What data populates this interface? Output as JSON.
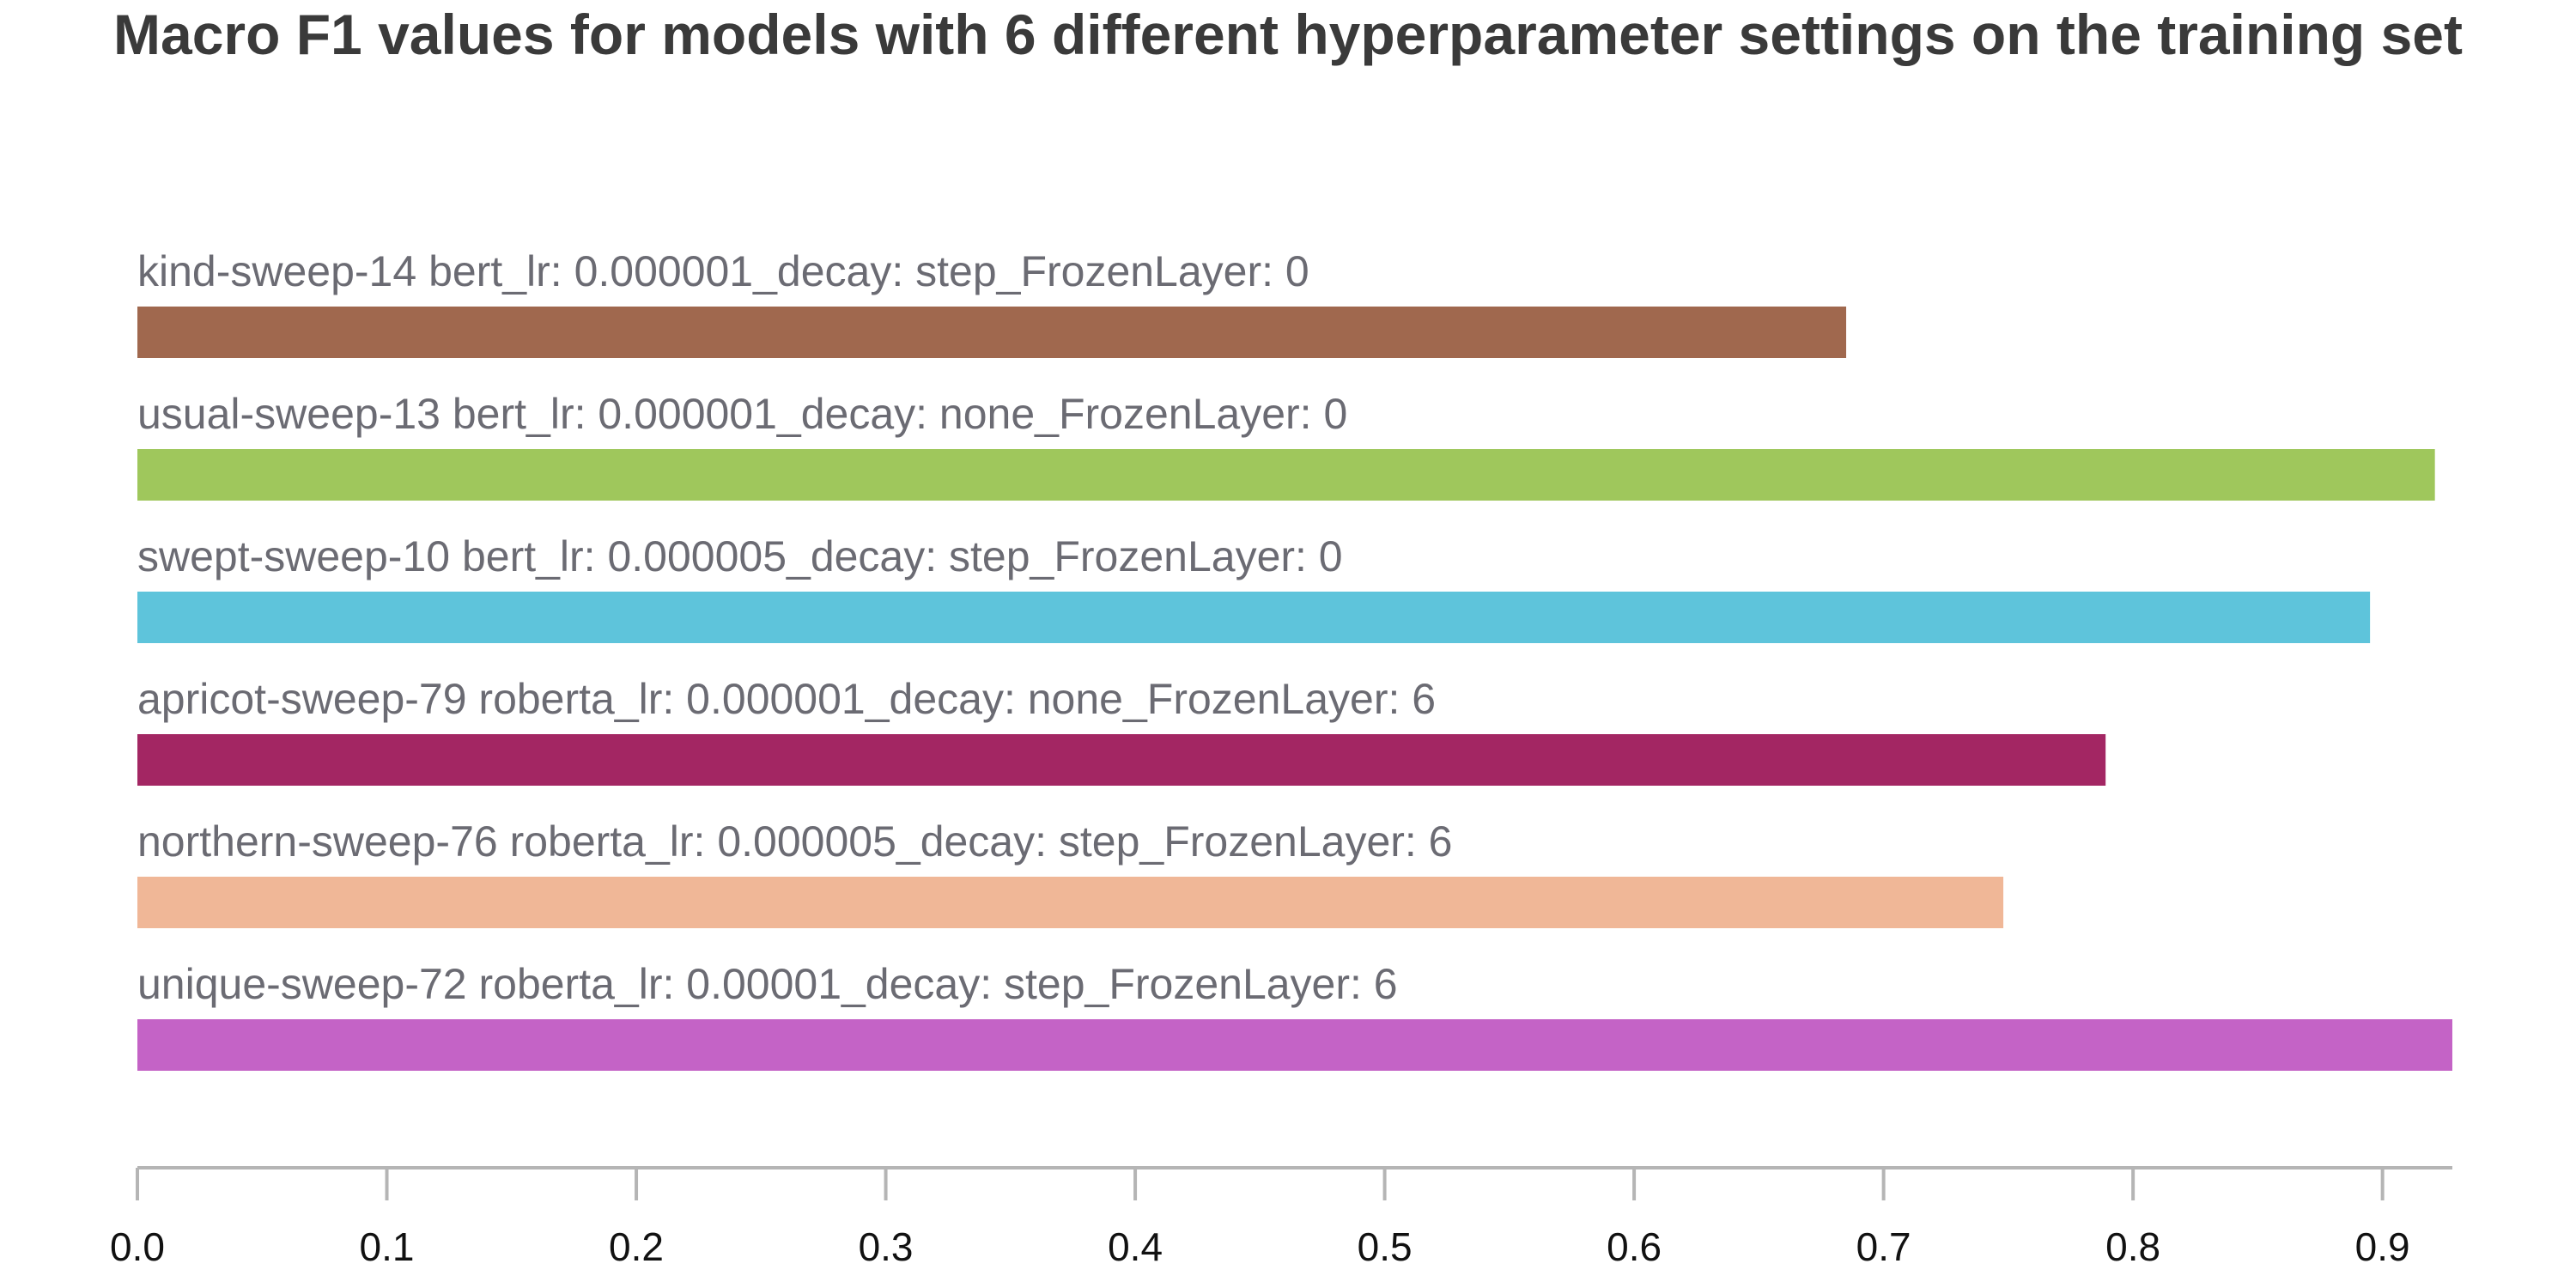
{
  "chart_data": {
    "type": "bar",
    "orientation": "horizontal",
    "title": "Macro F1 values for models with 6 different hyperparameter settings on the training set",
    "xlabel": "",
    "ylabel": "",
    "xlim": [
      0,
      0.928
    ],
    "grid": false,
    "legend": "none",
    "bars": [
      {
        "label": "kind-sweep-14 bert_lr: 0.000001_decay: step_FrozenLayer: 0",
        "value": 0.685,
        "color": "#a0684e"
      },
      {
        "label": "usual-sweep-13 bert_lr: 0.000001_decay: none_FrozenLayer: 0",
        "value": 0.921,
        "color": "#9fc75c"
      },
      {
        "label": "swept-sweep-10 bert_lr: 0.000005_decay: step_FrozenLayer: 0",
        "value": 0.895,
        "color": "#5ec4db"
      },
      {
        "label": "apricot-sweep-79 roberta_lr: 0.000001_decay: none_FrozenLayer: 6",
        "value": 0.789,
        "color": "#a32663"
      },
      {
        "label": "northern-sweep-76 roberta_lr: 0.000005_decay: step_FrozenLayer: 6",
        "value": 0.748,
        "color": "#f0b797"
      },
      {
        "label": "unique-sweep-72 roberta_lr: 0.00001_decay: step_FrozenLayer: 6",
        "value": 0.928,
        "color": "#c463c6"
      }
    ],
    "ticks": [
      0.0,
      0.1,
      0.2,
      0.3,
      0.4,
      0.5,
      0.6,
      0.7,
      0.8,
      0.9
    ],
    "tick_labels": [
      "0.0",
      "0.1",
      "0.2",
      "0.3",
      "0.4",
      "0.5",
      "0.6",
      "0.7",
      "0.8",
      "0.9"
    ]
  }
}
